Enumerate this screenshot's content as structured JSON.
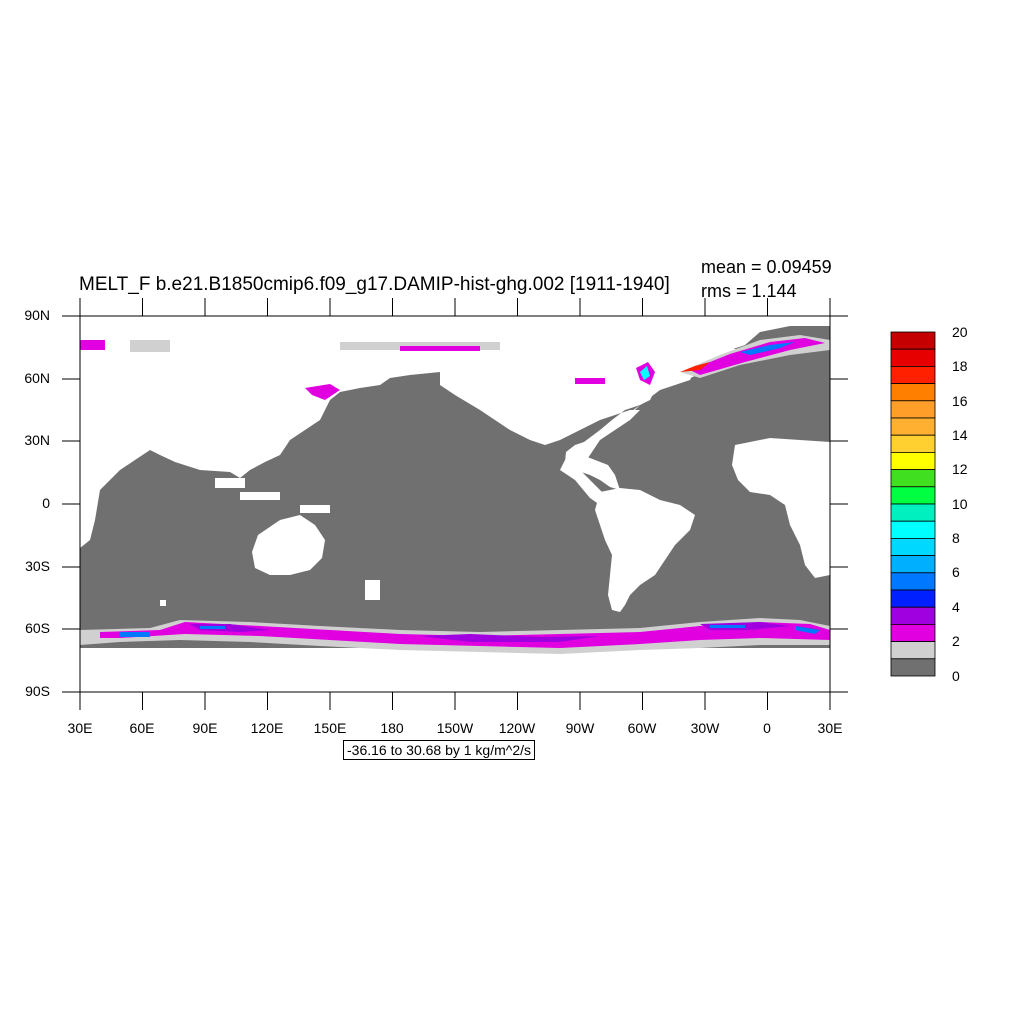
{
  "title": "MELT_F b.e21.B1850cmip6.f09_g17.DAMIP-hist-ghg.002 [1911-1940]",
  "stats": {
    "mean": "mean = 0.09459",
    "rms": "rms = 1.144"
  },
  "info_box": "-36.16 to 30.68 by 1 kg/m^2/s",
  "y_ticks": [
    "90N",
    "60N",
    "30N",
    "0",
    "30S",
    "60S",
    "90S"
  ],
  "x_ticks": [
    "30E",
    "60E",
    "90E",
    "120E",
    "150E",
    "180",
    "150W",
    "120W",
    "90W",
    "60W",
    "30W",
    "0",
    "30E"
  ],
  "colorbar": {
    "labels": [
      "20",
      "18",
      "16",
      "14",
      "12",
      "10",
      "8",
      "6",
      "4",
      "2",
      "0"
    ],
    "colors_top_to_bottom": [
      "#c40000",
      "#e60000",
      "#ff2000",
      "#ff7f00",
      "#ff9f2a",
      "#ffb030",
      "#ffd030",
      "#ffff00",
      "#40e020",
      "#00ff40",
      "#00f0c0",
      "#00ffff",
      "#00d8ff",
      "#00b0ff",
      "#0078ff",
      "#0020ff",
      "#a000e0",
      "#e000e0",
      "#d0d0d0",
      "#707070"
    ]
  },
  "colors": {
    "ocean": "#707070",
    "land": "#ffffff",
    "sea_ice_edge": "#d0d0d0",
    "melt_low": "#e000e0",
    "melt_mid": "#a000e0"
  }
}
